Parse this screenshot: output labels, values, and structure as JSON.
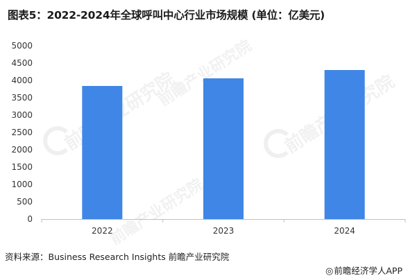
{
  "title": "图表5：2022-2024年全球呼叫中心行业市场规模 (单位：亿美元)",
  "source": "资料来源：Business Research Insights 前瞻产业研究院",
  "brand": {
    "logo_icon": "qianzhan-logo-icon",
    "text": "前瞻经济学人APP"
  },
  "watermark": {
    "text": "前瞻产业研究院"
  },
  "colors": {
    "bar": "#3f86e6",
    "axis": "#bfbfbf",
    "tick_text": "#333333"
  },
  "chart_data": {
    "type": "bar",
    "categories": [
      "2022",
      "2023",
      "2024"
    ],
    "values": [
      3840,
      4060,
      4300
    ],
    "ylim": [
      0,
      5000
    ],
    "yticks": [
      0,
      500,
      1000,
      1500,
      2000,
      2500,
      3000,
      3500,
      4000,
      4500,
      5000
    ],
    "grid": false,
    "legend": "none"
  }
}
